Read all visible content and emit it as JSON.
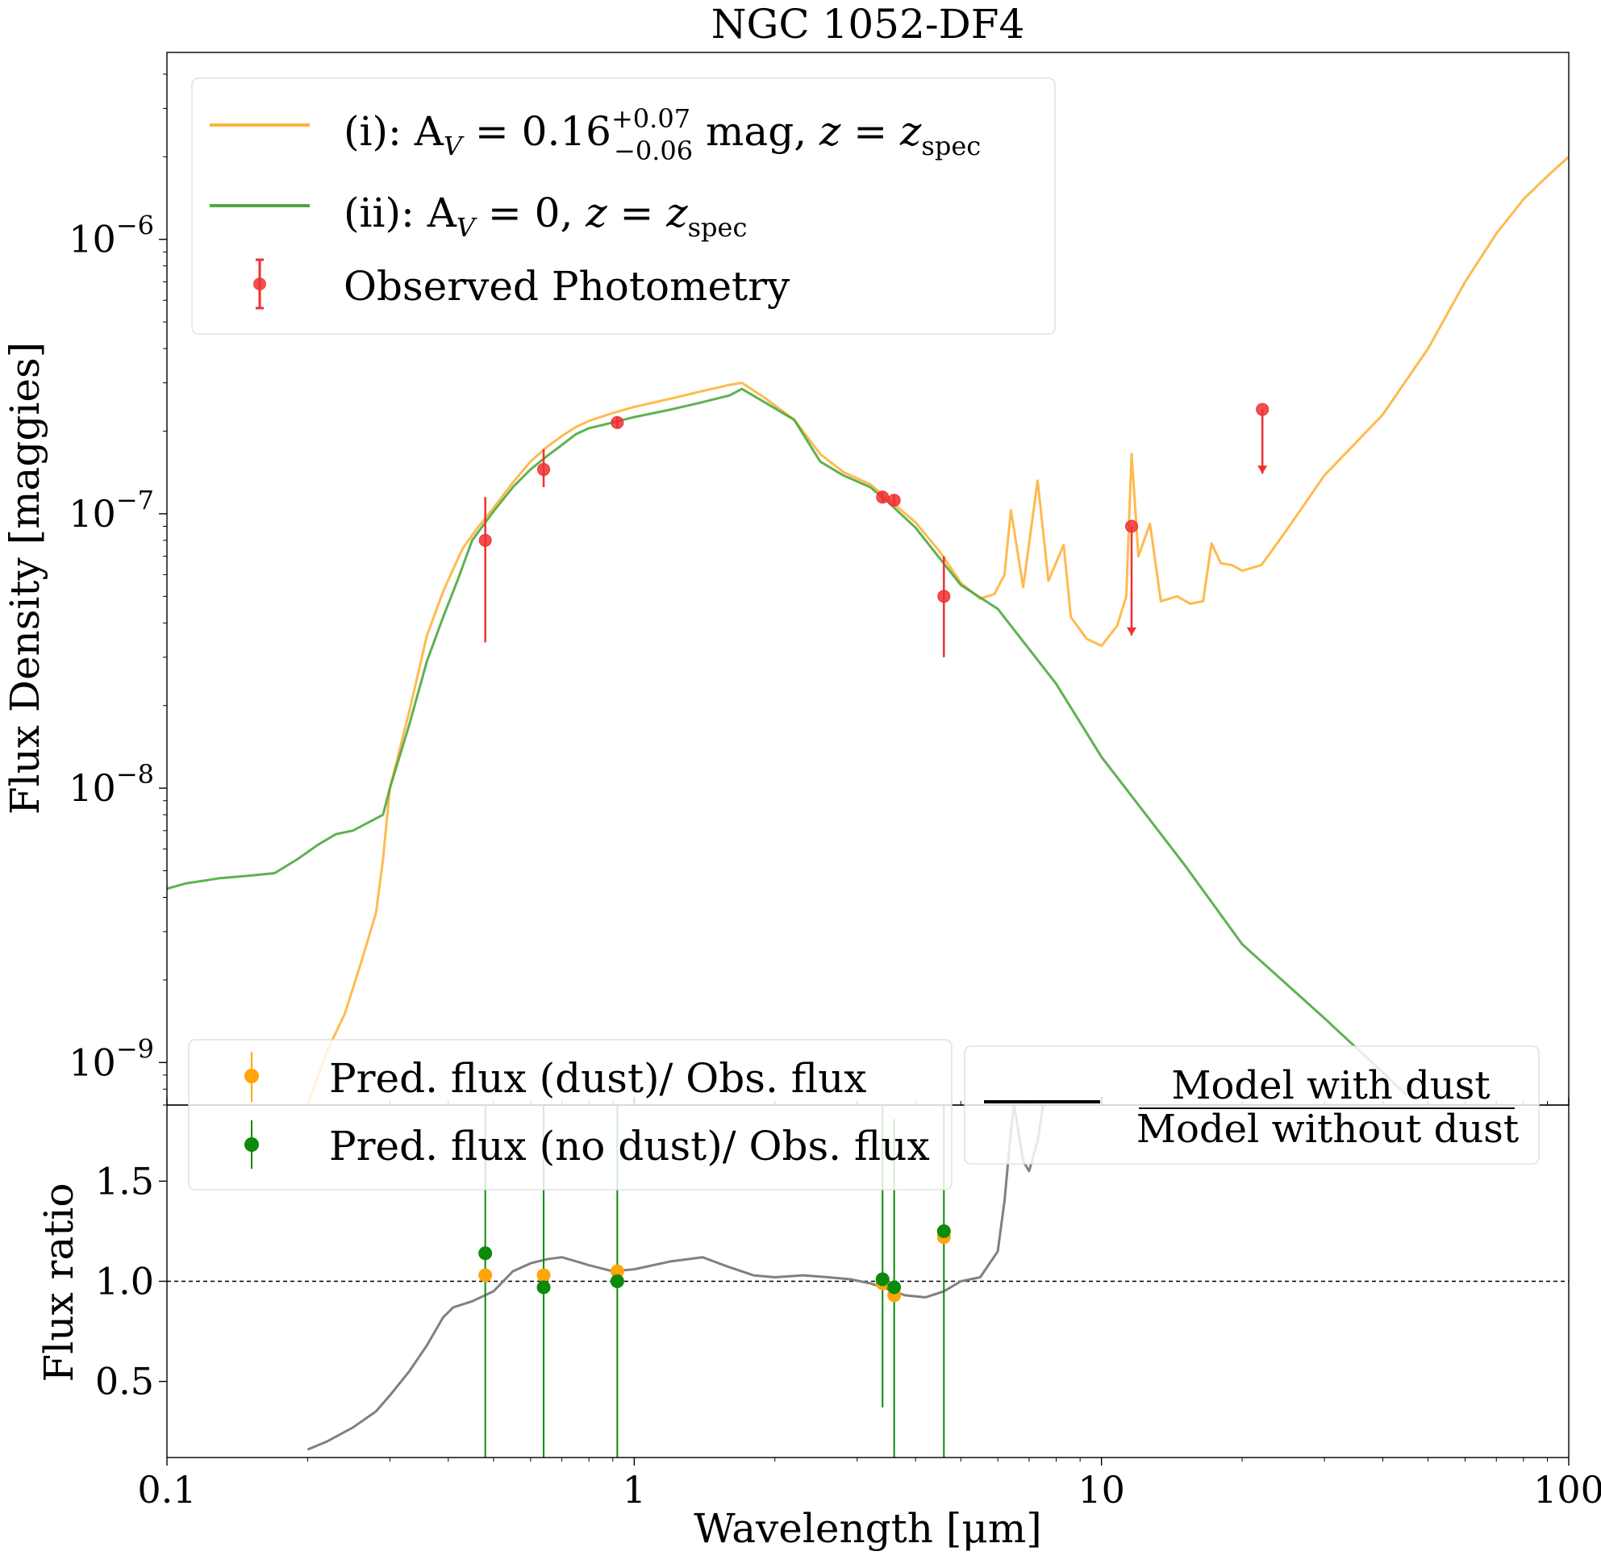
{
  "chart_data": [
    {
      "type": "line",
      "title": "NGC 1052-DF4",
      "xlabel": "",
      "ylabel": "Flux Density [maggies]",
      "xscale": "log",
      "yscale": "log",
      "xlim": [
        0.1,
        100
      ],
      "ylim": [
        7e-10,
        4.8e-06
      ],
      "y_ticks": [
        {
          "value": 1e-09,
          "base": "10",
          "exp": "−9"
        },
        {
          "value": 1e-08,
          "base": "10",
          "exp": "−8"
        },
        {
          "value": 1e-07,
          "base": "10",
          "exp": "−7"
        },
        {
          "value": 1e-06,
          "base": "10",
          "exp": "−6"
        }
      ],
      "legend_placement": "upper-left",
      "legend": {
        "dust_prefix": "(i): A",
        "dust_sub": "V",
        "dust_value": " = 0.16",
        "dust_sup": "+0.07",
        "dust_inf": "−0.06",
        "dust_unit": " mag, ",
        "z_label": "z = z",
        "z_sub": "spec",
        "nodust_prefix": "(ii): A",
        "nodust_sub": "V",
        "nodust_value": " = 0, ",
        "observed_label": "Observed Photometry"
      },
      "series": [
        {
          "key": "dust",
          "color": "#ffb33b",
          "x": [
            0.2,
            0.22,
            0.24,
            0.26,
            0.28,
            0.29,
            0.3,
            0.33,
            0.36,
            0.39,
            0.41,
            0.43,
            0.46,
            0.5,
            0.55,
            0.6,
            0.65,
            0.7,
            0.75,
            0.8,
            0.9,
            1.0,
            1.2,
            1.4,
            1.6,
            1.7,
            1.9,
            2.2,
            2.5,
            2.8,
            3.2,
            3.5,
            4.0,
            4.5,
            5.0,
            5.5,
            5.9,
            6.2,
            6.4,
            6.8,
            7.3,
            7.7,
            8.3,
            8.6,
            9.3,
            10.0,
            10.8,
            11.3,
            11.6,
            12.0,
            12.7,
            13.4,
            14.5,
            15.5,
            16.5,
            17.2,
            18.0,
            19.0,
            20.0,
            22.0,
            25.0,
            30.0,
            40.0,
            50.0,
            60.0,
            70.0,
            80.0,
            90.0,
            100.0
          ],
          "y": [
            7e-10,
            1.1e-09,
            1.5e-09,
            2.3e-09,
            3.5e-09,
            5.5e-09,
            1e-08,
            1.9e-08,
            3.6e-08,
            5.2e-08,
            6.3e-08,
            7.5e-08,
            8.8e-08,
            1.05e-07,
            1.3e-07,
            1.55e-07,
            1.75e-07,
            1.92e-07,
            2.07e-07,
            2.18e-07,
            2.33e-07,
            2.45e-07,
            2.63e-07,
            2.8e-07,
            2.95e-07,
            3e-07,
            2.65e-07,
            2.2e-07,
            1.65e-07,
            1.42e-07,
            1.28e-07,
            1.13e-07,
            9.3e-08,
            7.3e-08,
            5.6e-08,
            4.9e-08,
            5.1e-08,
            6e-08,
            1.03e-07,
            5.4e-08,
            1.32e-07,
            5.7e-08,
            7.7e-08,
            4.2e-08,
            3.5e-08,
            3.3e-08,
            3.9e-08,
            5e-08,
            1.65e-07,
            7e-08,
            9.2e-08,
            4.8e-08,
            5e-08,
            4.7e-08,
            4.8e-08,
            7.8e-08,
            6.6e-08,
            6.5e-08,
            6.2e-08,
            6.5e-08,
            8.8e-08,
            1.38e-07,
            2.3e-07,
            4e-07,
            7e-07,
            1.05e-06,
            1.4e-06,
            1.7e-06,
            2e-06
          ]
        },
        {
          "key": "nodust",
          "color": "#4ea83f",
          "x": [
            0.1,
            0.11,
            0.12,
            0.13,
            0.15,
            0.17,
            0.19,
            0.21,
            0.23,
            0.25,
            0.27,
            0.29,
            0.3,
            0.33,
            0.36,
            0.39,
            0.42,
            0.45,
            0.5,
            0.55,
            0.6,
            0.65,
            0.7,
            0.75,
            0.8,
            0.9,
            1.0,
            1.2,
            1.4,
            1.6,
            1.7,
            1.9,
            2.2,
            2.5,
            2.8,
            3.2,
            3.5,
            4.0,
            4.5,
            5.0,
            6.0,
            8.0,
            10.0,
            15.0,
            20.0,
            30.0,
            40.0,
            45.0
          ],
          "y": [
            4.3e-09,
            4.5e-09,
            4.6e-09,
            4.7e-09,
            4.8e-09,
            4.9e-09,
            5.5e-09,
            6.2e-09,
            6.8e-09,
            7e-09,
            7.5e-09,
            8e-09,
            1e-08,
            1.7e-08,
            2.9e-08,
            4.2e-08,
            5.8e-08,
            8e-08,
            1.02e-07,
            1.25e-07,
            1.45e-07,
            1.62e-07,
            1.78e-07,
            1.95e-07,
            2.05e-07,
            2.15e-07,
            2.25e-07,
            2.4e-07,
            2.55e-07,
            2.7e-07,
            2.85e-07,
            2.55e-07,
            2.2e-07,
            1.55e-07,
            1.38e-07,
            1.25e-07,
            1.1e-07,
            8.9e-08,
            6.9e-08,
            5.5e-08,
            4.5e-08,
            2.4e-08,
            1.3e-08,
            5.3e-09,
            2.7e-09,
            1.45e-09,
            9.2e-10,
            7.6e-10
          ]
        }
      ],
      "observed": {
        "color": "#f03030",
        "points": [
          {
            "x": 0.48,
            "y": 8e-08,
            "lo": 3.4e-08,
            "hi": 1.15e-07,
            "upper_limit": false
          },
          {
            "x": 0.64,
            "y": 1.45e-07,
            "lo": 1.25e-07,
            "hi": 1.72e-07,
            "upper_limit": false
          },
          {
            "x": 0.92,
            "y": 2.15e-07,
            "lo": 2.05e-07,
            "hi": 2.25e-07,
            "upper_limit": false
          },
          {
            "x": 3.4,
            "y": 1.15e-07,
            "lo": 1.1e-07,
            "hi": 1.2e-07,
            "upper_limit": false
          },
          {
            "x": 3.6,
            "y": 1.12e-07,
            "lo": 1.07e-07,
            "hi": 1.17e-07,
            "upper_limit": false
          },
          {
            "x": 4.6,
            "y": 5e-08,
            "lo": 3e-08,
            "hi": 7e-08,
            "upper_limit": false
          },
          {
            "x": 11.6,
            "y": 9e-08,
            "lo": 3.6e-08,
            "hi": 9e-08,
            "upper_limit": true
          },
          {
            "x": 22.1,
            "y": 2.4e-07,
            "lo": 1.4e-07,
            "hi": 2.4e-07,
            "upper_limit": true
          }
        ]
      }
    },
    {
      "type": "line",
      "title": "",
      "xlabel": "Wavelength [μm]",
      "ylabel": "Flux ratio",
      "xscale": "log",
      "xlim": [
        0.1,
        100
      ],
      "ylim": [
        0.12,
        1.88
      ],
      "x_ticks": [
        {
          "value": 0.1,
          "label": "0.1"
        },
        {
          "value": 1,
          "label": "1"
        },
        {
          "value": 10,
          "label": "10"
        },
        {
          "value": 100,
          "label": "100"
        }
      ],
      "y_ticks": [
        {
          "value": 0.5,
          "label": "0.5"
        },
        {
          "value": 1.0,
          "label": "1.0"
        },
        {
          "value": 1.5,
          "label": "1.5"
        }
      ],
      "reference_line": 1.0,
      "legend_left": {
        "dust_label": "Pred. flux (dust)/ Obs. flux",
        "nodust_label": "Pred. flux (no dust)/ Obs. flux"
      },
      "legend_right": {
        "numerator": "Model with dust",
        "denominator": "Model without dust"
      },
      "ratio_curve": {
        "color": "#808080",
        "x": [
          0.2,
          0.22,
          0.25,
          0.28,
          0.3,
          0.33,
          0.36,
          0.39,
          0.41,
          0.45,
          0.5,
          0.55,
          0.6,
          0.65,
          0.7,
          0.75,
          0.8,
          0.9,
          1.0,
          1.2,
          1.4,
          1.6,
          1.8,
          2.0,
          2.3,
          2.6,
          2.9,
          3.2,
          3.5,
          3.8,
          4.2,
          4.6,
          5.0,
          5.5,
          6.0,
          6.2,
          6.4,
          6.5,
          6.8,
          7.0,
          7.3,
          7.5
        ],
        "y": [
          0.16,
          0.2,
          0.27,
          0.35,
          0.43,
          0.55,
          0.68,
          0.82,
          0.87,
          0.9,
          0.95,
          1.05,
          1.09,
          1.11,
          1.12,
          1.1,
          1.08,
          1.05,
          1.06,
          1.1,
          1.12,
          1.07,
          1.03,
          1.02,
          1.03,
          1.02,
          1.01,
          0.99,
          0.96,
          0.93,
          0.92,
          0.95,
          1.0,
          1.02,
          1.15,
          1.4,
          1.75,
          1.88,
          1.6,
          1.55,
          1.7,
          1.88
        ]
      },
      "ratio_points": [
        {
          "series": "dust",
          "color": "#ffa50a",
          "x": 0.48,
          "y": 1.03
        },
        {
          "series": "dust",
          "color": "#ffa50a",
          "x": 0.64,
          "y": 1.03
        },
        {
          "series": "dust",
          "color": "#ffa50a",
          "x": 0.92,
          "y": 1.05
        },
        {
          "series": "dust",
          "color": "#ffa50a",
          "x": 3.4,
          "y": 0.99
        },
        {
          "series": "dust",
          "color": "#ffa50a",
          "x": 3.6,
          "y": 0.93
        },
        {
          "series": "dust",
          "color": "#ffa50a",
          "x": 4.6,
          "y": 1.22
        },
        {
          "series": "nodust",
          "color": "#0c8a0c",
          "x": 0.48,
          "y": 1.14
        },
        {
          "series": "nodust",
          "color": "#0c8a0c",
          "x": 0.64,
          "y": 0.97
        },
        {
          "series": "nodust",
          "color": "#0c8a0c",
          "x": 0.92,
          "y": 1.0
        },
        {
          "series": "nodust",
          "color": "#0c8a0c",
          "x": 3.4,
          "y": 1.01
        },
        {
          "series": "nodust",
          "color": "#0c8a0c",
          "x": 3.6,
          "y": 0.97
        },
        {
          "series": "nodust",
          "color": "#0c8a0c",
          "x": 4.6,
          "y": 1.25
        }
      ],
      "ratio_errorbars": [
        {
          "x": 0.48,
          "lo": 0.12,
          "hi": 1.88
        },
        {
          "x": 0.64,
          "lo": 0.12,
          "hi": 1.88
        },
        {
          "x": 0.92,
          "lo": 0.12,
          "hi": 1.88
        },
        {
          "x": 3.4,
          "lo": 0.37,
          "hi": 1.88
        },
        {
          "x": 3.6,
          "lo": 0.12,
          "hi": 1.81
        },
        {
          "x": 4.6,
          "lo": 0.12,
          "hi": 1.88
        }
      ]
    }
  ]
}
